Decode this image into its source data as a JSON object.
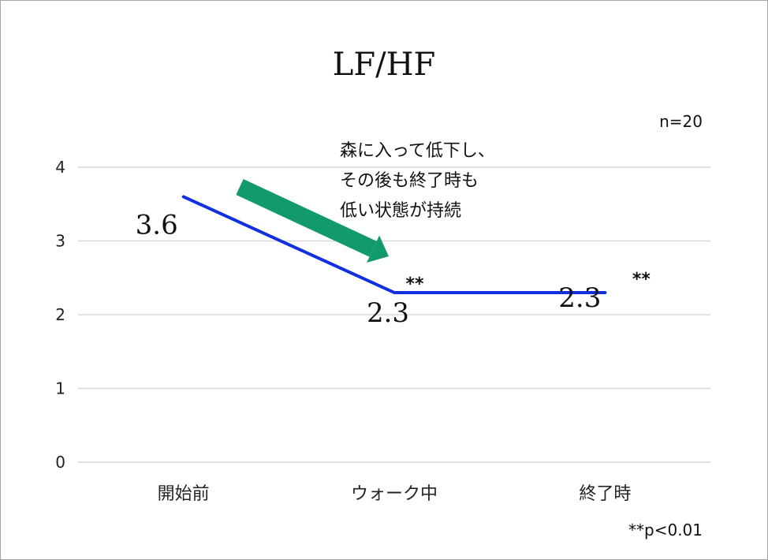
{
  "chart_data": {
    "type": "line",
    "title": "LF/HF",
    "categories": [
      "開始前",
      "ウォーク中",
      "終了時"
    ],
    "series": [
      {
        "values": [
          3.6,
          2.3,
          2.3
        ],
        "color": "#1030e0"
      }
    ],
    "data_labels": [
      "3.6",
      "2.3",
      "2.3"
    ],
    "significance_marks": [
      "",
      "**",
      "**"
    ],
    "ylim": [
      0,
      4
    ],
    "yticks": [
      0,
      1,
      2,
      3,
      4
    ],
    "grid": true,
    "sample_size": "n=20",
    "annotation_lines": [
      "森に入って低下し、",
      "その後も終了時も",
      "低い状態が持続"
    ],
    "arrow_color": "#139a6c",
    "footnote": "**p<0.01"
  }
}
